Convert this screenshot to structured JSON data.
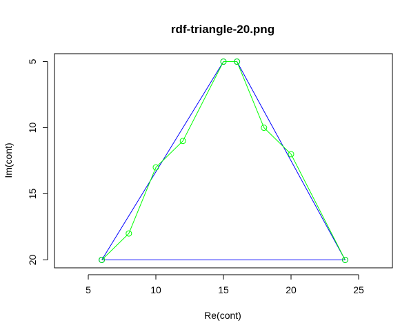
{
  "chart_data": {
    "type": "line",
    "title": "rdf-triangle-20.png",
    "xlabel": "Re(cont)",
    "ylabel": "Im(cont)",
    "xlim": [
      2.5,
      27.5
    ],
    "ylim": [
      20.6,
      4.4
    ],
    "y_reversed": true,
    "x_ticks": [
      5,
      10,
      15,
      20,
      25
    ],
    "y_ticks": [
      5,
      10,
      15,
      20
    ],
    "grid": false,
    "legend": "none",
    "series": [
      {
        "color": "#0000ff",
        "marker": "open-circle",
        "x": [
          6,
          15,
          16,
          24,
          6
        ],
        "y": [
          20,
          5,
          5,
          20,
          20
        ]
      },
      {
        "color": "#00ff00",
        "marker": "open-circle",
        "x": [
          6,
          8,
          10,
          12,
          15,
          16,
          18,
          20,
          24
        ],
        "y": [
          20,
          18,
          13,
          11,
          5,
          5,
          10,
          12,
          20
        ]
      }
    ]
  }
}
